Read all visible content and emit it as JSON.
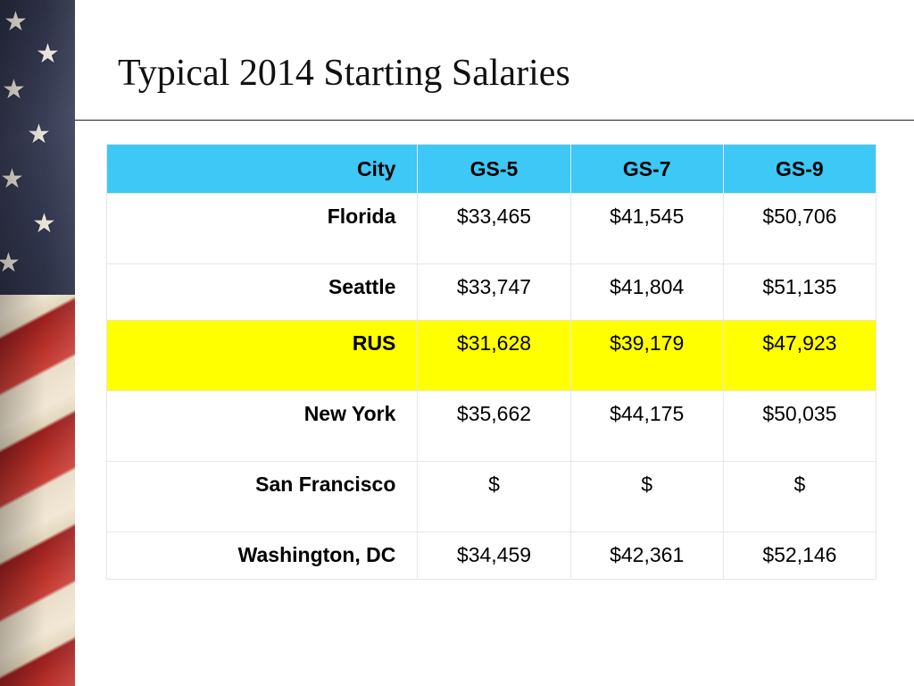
{
  "slide": {
    "title": "Typical 2014 Starting Salaries",
    "decoration": {
      "image": "american-flag",
      "colors": {
        "stripe_red": "#b8322b",
        "stripe_cream": "#f1e7d3",
        "canton_navy": "#2f3349",
        "star": "#e9e4da"
      }
    }
  },
  "table": {
    "header_color": "#3dc8f5",
    "highlight_color": "#ffff00",
    "headers": {
      "city": "City",
      "gs5": "GS-5",
      "gs7": "GS-7",
      "gs9": "GS-9"
    },
    "rows": [
      {
        "city": "Florida",
        "gs5": "$33,465",
        "gs7": "$41,545",
        "gs9": "$50,706",
        "highlighted": false
      },
      {
        "city": "Seattle",
        "gs5": "$33,747",
        "gs7": "$41,804",
        "gs9": "$51,135",
        "highlighted": false
      },
      {
        "city": "RUS",
        "gs5": "$31,628",
        "gs7": "$39,179",
        "gs9": "$47,923",
        "highlighted": true
      },
      {
        "city": "New York",
        "gs5": "$35,662",
        "gs7": "$44,175",
        "gs9": "$50,035",
        "highlighted": false
      },
      {
        "city": "San Francisco",
        "gs5": "$",
        "gs7": "$",
        "gs9": "$",
        "highlighted": false
      },
      {
        "city": "Washington, DC",
        "gs5": "$34,459",
        "gs7": "$42,361",
        "gs9": "$52,146",
        "highlighted": false
      }
    ]
  }
}
